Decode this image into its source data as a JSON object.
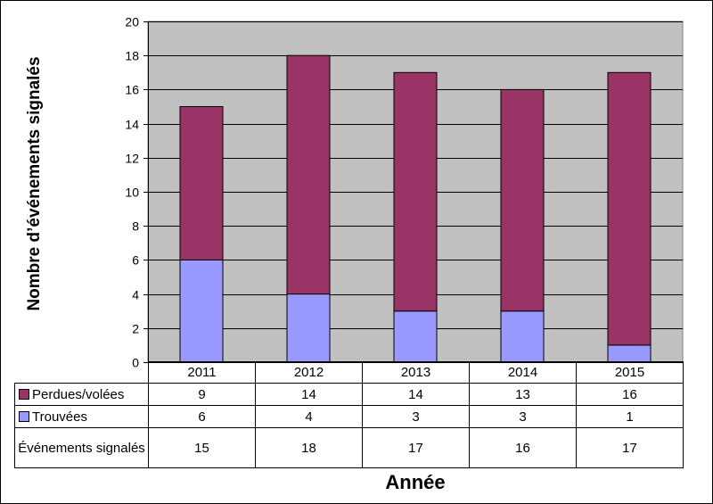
{
  "chart_data": {
    "type": "bar",
    "stacked": true,
    "categories": [
      "2011",
      "2012",
      "2013",
      "2014",
      "2015"
    ],
    "series": [
      {
        "name": "Perdues/volées",
        "values": [
          9,
          14,
          14,
          13,
          16
        ],
        "color": "#993366"
      },
      {
        "name": "Trouvées",
        "values": [
          6,
          4,
          3,
          3,
          1
        ],
        "color": "#9999ff"
      }
    ],
    "totals": {
      "name": "Événements signalés",
      "values": [
        15,
        18,
        17,
        16,
        17
      ]
    },
    "title": "",
    "xlabel": "Année",
    "ylabel": "Nombre d’événements signalés",
    "ylim": [
      0,
      20
    ],
    "yticks": [
      0,
      2,
      4,
      6,
      8,
      10,
      12,
      14,
      16,
      18,
      20
    ],
    "grid": true,
    "plot_background": "#c0c0c0",
    "legend": "data-table"
  }
}
